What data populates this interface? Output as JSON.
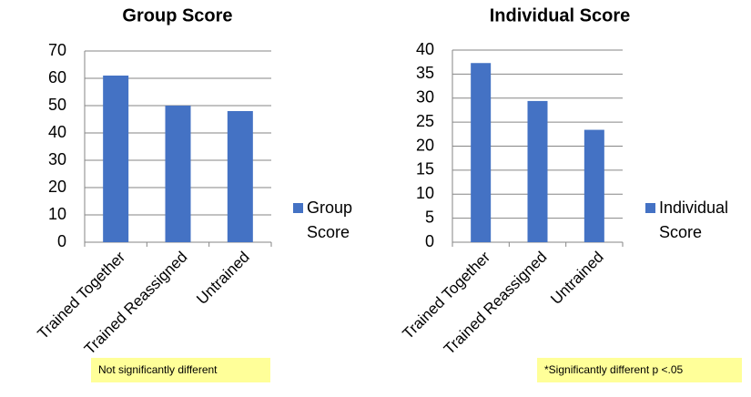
{
  "chart_data": [
    {
      "type": "bar",
      "title": "Group Score",
      "categories": [
        "Trained Together",
        "Trained Reassigned",
        "Untrained"
      ],
      "series": [
        {
          "name": "Group Score",
          "color": "#4472c4",
          "values": [
            61,
            50,
            48
          ]
        }
      ],
      "ylim": [
        0,
        70
      ],
      "yticks": [
        0,
        10,
        20,
        30,
        40,
        50,
        60,
        70
      ],
      "grid": true,
      "legend": "right",
      "annotation": "Not significantly different"
    },
    {
      "type": "bar",
      "title": "Individual Score",
      "categories": [
        "Trained Together",
        "Trained Reassigned",
        "Untrained"
      ],
      "series": [
        {
          "name": "Individual Score",
          "color": "#4472c4",
          "values": [
            37.3,
            29.4,
            23.4
          ]
        }
      ],
      "ylim": [
        0,
        40
      ],
      "yticks": [
        0,
        5,
        10,
        15,
        20,
        25,
        30,
        35,
        40
      ],
      "grid": true,
      "legend": "right",
      "annotation": "*Significantly different p <.05"
    }
  ]
}
